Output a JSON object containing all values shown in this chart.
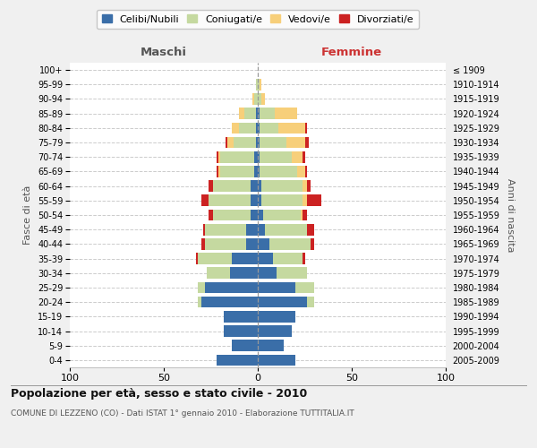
{
  "age_groups": [
    "0-4",
    "5-9",
    "10-14",
    "15-19",
    "20-24",
    "25-29",
    "30-34",
    "35-39",
    "40-44",
    "45-49",
    "50-54",
    "55-59",
    "60-64",
    "65-69",
    "70-74",
    "75-79",
    "80-84",
    "85-89",
    "90-94",
    "95-99",
    "100+"
  ],
  "birth_years": [
    "2005-2009",
    "2000-2004",
    "1995-1999",
    "1990-1994",
    "1985-1989",
    "1980-1984",
    "1975-1979",
    "1970-1974",
    "1965-1969",
    "1960-1964",
    "1955-1959",
    "1950-1954",
    "1945-1949",
    "1940-1944",
    "1935-1939",
    "1930-1934",
    "1925-1929",
    "1920-1924",
    "1915-1919",
    "1910-1914",
    "≤ 1909"
  ],
  "colors": {
    "celibi": "#3a6ea8",
    "coniugati": "#c5d9a0",
    "vedovi": "#f7cf7a",
    "divorziati": "#cc2222"
  },
  "males": {
    "celibi": [
      22,
      14,
      18,
      18,
      30,
      28,
      15,
      14,
      6,
      6,
      4,
      4,
      4,
      2,
      2,
      1,
      1,
      1,
      0,
      0,
      0
    ],
    "coniugati": [
      0,
      0,
      0,
      0,
      2,
      4,
      12,
      18,
      22,
      22,
      20,
      22,
      20,
      18,
      18,
      12,
      9,
      6,
      2,
      1,
      0
    ],
    "vedovi": [
      0,
      0,
      0,
      0,
      0,
      0,
      0,
      0,
      0,
      0,
      0,
      0,
      0,
      1,
      1,
      3,
      4,
      3,
      1,
      0,
      0
    ],
    "divorziati": [
      0,
      0,
      0,
      0,
      0,
      0,
      0,
      1,
      2,
      1,
      2,
      4,
      2,
      1,
      1,
      1,
      0,
      0,
      0,
      0,
      0
    ]
  },
  "females": {
    "celibi": [
      20,
      14,
      18,
      20,
      26,
      20,
      10,
      8,
      6,
      4,
      3,
      2,
      2,
      1,
      1,
      1,
      1,
      1,
      0,
      0,
      0
    ],
    "coniugati": [
      0,
      0,
      0,
      0,
      4,
      10,
      16,
      16,
      22,
      22,
      20,
      22,
      22,
      20,
      17,
      14,
      10,
      8,
      2,
      1,
      0
    ],
    "vedovi": [
      0,
      0,
      0,
      0,
      0,
      0,
      0,
      0,
      0,
      0,
      1,
      2,
      2,
      4,
      6,
      10,
      14,
      12,
      2,
      1,
      0
    ],
    "divorziati": [
      0,
      0,
      0,
      0,
      0,
      0,
      0,
      1,
      2,
      4,
      2,
      8,
      2,
      1,
      1,
      2,
      1,
      0,
      0,
      0,
      0
    ]
  },
  "title": "Popolazione per età, sesso e stato civile - 2010",
  "subtitle": "COMUNE DI LEZZENO (CO) - Dati ISTAT 1° gennaio 2010 - Elaborazione TUTTITALIA.IT",
  "xlabel_left": "Maschi",
  "xlabel_right": "Femmine",
  "ylabel_left": "Fasce di età",
  "ylabel_right": "Anni di nascita",
  "xlim": 100,
  "bg_color": "#f0f0f0",
  "plot_bg": "#ffffff",
  "grid_color": "#cccccc"
}
